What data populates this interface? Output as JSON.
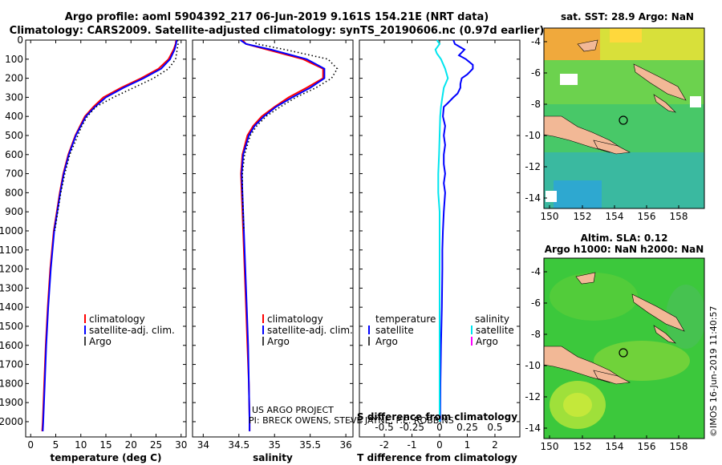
{
  "title": {
    "line1": "Argo profile: aoml 5904392_217 06-Jun-2019 9.161S 154.21E (NRT data)",
    "line2": "Climatology: CARS2009. Satellite-adjusted climatology: synTS_20190606.nc (0.97d earlier)"
  },
  "colors": {
    "climatology": "#ff0000",
    "satellite": "#0000ff",
    "argo": "#000000",
    "cyan": "#00e5ee",
    "magenta": "#ff00ff",
    "land": "#f2b896",
    "map_bg": "#3cc83c"
  },
  "depth_ticks": [
    0,
    100,
    200,
    300,
    400,
    500,
    600,
    700,
    800,
    900,
    1000,
    1100,
    1200,
    1300,
    1400,
    1500,
    1600,
    1700,
    1800,
    1900,
    2000
  ],
  "chart_data": [
    {
      "type": "line",
      "xlabel": "temperature (deg C)",
      "xticks": [
        0,
        5,
        10,
        15,
        20,
        25,
        30
      ],
      "xlim": [
        -1,
        31
      ],
      "ylim": [
        2080,
        0
      ],
      "legend": {
        "climatology": "climatology",
        "satellite": "satellite-adj. clim.",
        "argo": "Argo"
      },
      "series": [
        {
          "name": "climatology",
          "style": "solid",
          "color": "red",
          "depth": [
            0,
            20,
            50,
            100,
            150,
            200,
            250,
            300,
            350,
            400,
            500,
            600,
            700,
            800,
            900,
            1000,
            1200,
            1400,
            1600,
            1800,
            2000,
            2050
          ],
          "values": [
            29.0,
            28.9,
            28.5,
            27.5,
            25.5,
            22.0,
            18.0,
            14.5,
            12.5,
            10.8,
            8.9,
            7.5,
            6.5,
            5.8,
            5.2,
            4.6,
            3.9,
            3.4,
            3.0,
            2.7,
            2.4,
            2.3
          ]
        },
        {
          "name": "satellite",
          "style": "solid",
          "color": "blue",
          "depth": [
            0,
            20,
            50,
            100,
            150,
            200,
            250,
            300,
            350,
            400,
            500,
            600,
            700,
            800,
            900,
            1000,
            1200,
            1400,
            1600,
            1800,
            2000,
            2050
          ],
          "values": [
            29.1,
            29.0,
            28.7,
            27.8,
            26.0,
            22.5,
            18.5,
            15.0,
            12.8,
            11.0,
            9.0,
            7.6,
            6.6,
            5.9,
            5.3,
            4.7,
            4.0,
            3.5,
            3.1,
            2.8,
            2.5,
            2.4
          ]
        },
        {
          "name": "argo",
          "style": "dotted",
          "color": "black",
          "depth": [
            0,
            20,
            50,
            100,
            150,
            200,
            250,
            300,
            350,
            400,
            450,
            500,
            600,
            700,
            800,
            900,
            1000
          ],
          "values": [
            29.3,
            29.4,
            29.2,
            28.9,
            27.5,
            24.5,
            20.5,
            16.5,
            13.0,
            11.3,
            10.2,
            9.4,
            7.8,
            6.8,
            6.0,
            5.4,
            4.8
          ]
        }
      ]
    },
    {
      "type": "line",
      "xlabel": "salinity",
      "xticks": [
        34,
        34.5,
        35,
        35.5,
        36
      ],
      "xlim": [
        33.85,
        36.1
      ],
      "ylim": [
        2080,
        0
      ],
      "legend": {
        "climatology": "climatology",
        "satellite": "satellite-adj. clim.",
        "argo": "Argo"
      },
      "series": [
        {
          "name": "climatology",
          "style": "solid",
          "color": "red",
          "depth": [
            0,
            20,
            50,
            100,
            150,
            200,
            250,
            300,
            350,
            400,
            450,
            500,
            600,
            700,
            800,
            1000,
            1200,
            1400,
            1600,
            1800,
            2000,
            2050
          ],
          "values": [
            34.55,
            34.6,
            34.9,
            35.4,
            35.68,
            35.68,
            35.45,
            35.2,
            35.0,
            34.82,
            34.7,
            34.62,
            34.55,
            34.53,
            34.54,
            34.56,
            34.58,
            34.6,
            34.62,
            34.64,
            34.65,
            34.65
          ]
        },
        {
          "name": "satellite",
          "style": "solid",
          "color": "blue",
          "depth": [
            0,
            20,
            50,
            100,
            150,
            200,
            250,
            300,
            350,
            400,
            450,
            500,
            600,
            700,
            800,
            1000,
            1200,
            1400,
            1600,
            1800,
            2000,
            2050
          ],
          "values": [
            34.52,
            34.6,
            34.95,
            35.45,
            35.7,
            35.7,
            35.5,
            35.25,
            35.02,
            34.85,
            34.72,
            34.64,
            34.56,
            34.54,
            34.55,
            34.57,
            34.59,
            34.61,
            34.63,
            34.64,
            34.65,
            34.65
          ]
        },
        {
          "name": "argo",
          "style": "dotted",
          "color": "black",
          "depth": [
            0,
            20,
            50,
            100,
            150,
            200,
            250,
            300,
            350,
            400,
            450,
            500,
            600,
            700,
            800,
            900,
            1000
          ],
          "values": [
            34.7,
            34.75,
            35.15,
            35.75,
            35.88,
            35.8,
            35.58,
            35.3,
            35.08,
            34.88,
            34.75,
            34.66,
            34.58,
            34.55,
            34.55,
            34.56,
            34.57
          ]
        }
      ]
    },
    {
      "type": "line",
      "xlabel": "T difference from climatology",
      "top_xlabel": "S difference from climatology",
      "xticks": [
        -2,
        -1,
        0,
        1,
        2
      ],
      "top_ticks": [
        "-0.5",
        "-0.25",
        "0",
        "0.25",
        "0.5"
      ],
      "top_tick_values": [
        -2,
        -1,
        0,
        1,
        2
      ],
      "xlim": [
        -2.9,
        2.9
      ],
      "ylim": [
        2080,
        0
      ],
      "legend": {
        "temperature_header": "temperature",
        "salinity_header": "salinity",
        "satellite": "satellite",
        "argo": "Argo"
      },
      "series": [
        {
          "name": "T satellite diff",
          "style": "solid",
          "color": "blue",
          "depth": [
            0,
            20,
            50,
            80,
            100,
            130,
            150,
            180,
            200,
            230,
            250,
            280,
            300,
            330,
            350,
            400,
            450,
            500,
            550,
            600,
            650,
            700,
            750,
            800,
            900,
            1000,
            1100,
            1200,
            1400,
            1600,
            1800,
            2000
          ],
          "values": [
            0.5,
            0.55,
            0.9,
            0.7,
            0.95,
            1.2,
            1.2,
            1.0,
            0.8,
            0.75,
            0.75,
            0.65,
            0.5,
            0.3,
            0.15,
            0.12,
            0.2,
            0.15,
            0.2,
            0.15,
            0.15,
            0.2,
            0.15,
            0.2,
            0.15,
            0.12,
            0.1,
            0.1,
            0.08,
            0.05,
            0.03,
            0.02
          ]
        },
        {
          "name": "S satellite diff",
          "style": "solid",
          "color": "cyan",
          "depth": [
            0,
            20,
            50,
            70,
            100,
            150,
            200,
            250,
            300,
            350,
            400,
            500,
            600,
            700,
            800,
            900,
            1000,
            1200,
            1400,
            1600,
            1800,
            2000
          ],
          "values": [
            -0.1,
            0.0,
            -0.15,
            -0.1,
            0.05,
            0.2,
            0.3,
            0.15,
            0.1,
            0.05,
            0.02,
            0.0,
            -0.02,
            -0.05,
            -0.05,
            0.0,
            0.0,
            0.0,
            0.0,
            0.0,
            0.0,
            0.0
          ]
        }
      ]
    }
  ],
  "map_top": {
    "title": "sat. SST: 28.9 Argo: NaN",
    "xticks": [
      "150",
      "152",
      "154",
      "156",
      "158"
    ],
    "yticks": [
      "-4",
      "-6",
      "-8",
      "-10",
      "-12",
      "-14"
    ]
  },
  "map_bottom": {
    "title1": "Altim. SLA: 0.12",
    "title2": "Argo h1000: NaN h2000: NaN",
    "xticks": [
      "150",
      "152",
      "154",
      "156",
      "158"
    ],
    "yticks": [
      "-4",
      "-6",
      "-8",
      "-10",
      "-12",
      "-14"
    ]
  },
  "credits": {
    "line1": "US ARGO PROJECT",
    "line2": "PI: BRECK OWENS, STEVE JAYNE, P.E. ROBBINS",
    "imos": "©IMOS 16-Jun-2019 11:40:57"
  }
}
